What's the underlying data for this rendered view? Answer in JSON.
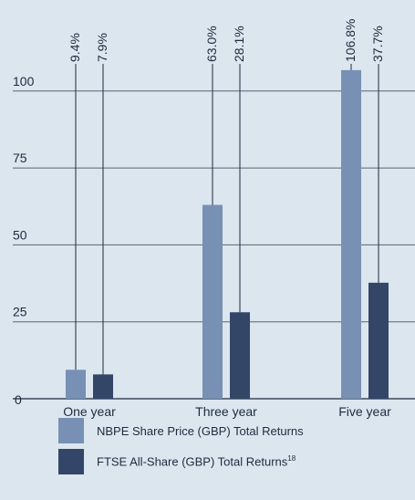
{
  "chart_data": {
    "type": "bar",
    "categories": [
      "One year",
      "Three year",
      "Five year"
    ],
    "series": [
      {
        "name": "NBPE Share Price (GBP) Total Returns",
        "values": [
          9.4,
          63.0,
          106.8
        ],
        "labels": [
          "9.4%",
          "63.0%",
          "106.8%"
        ],
        "color": "#7890b4"
      },
      {
        "name": "FTSE All-Share (GBP) Total Returns",
        "footnote": "18",
        "values": [
          7.9,
          28.1,
          37.7
        ],
        "labels": [
          "7.9%",
          "28.1%",
          "37.7%"
        ],
        "color": "#344668"
      }
    ],
    "yticks": [
      0,
      25,
      50,
      75,
      100
    ],
    "ylim": [
      0,
      112
    ],
    "grid": true,
    "legend_position": "bottom",
    "background": "#dce6ef",
    "gridline_color": "#5a6572",
    "text_color": "#1d2b3e"
  }
}
